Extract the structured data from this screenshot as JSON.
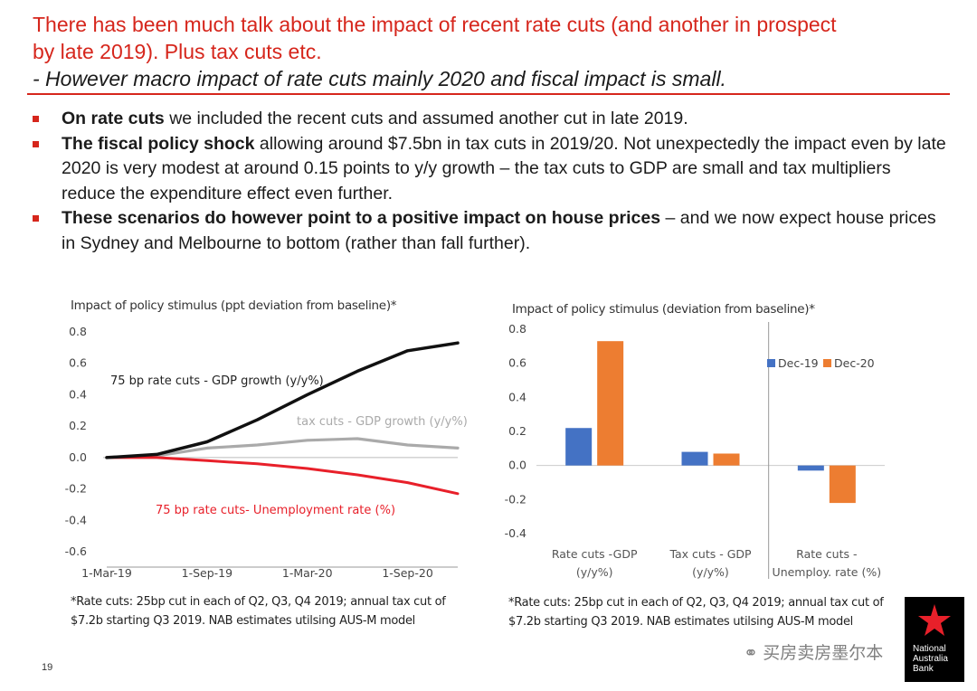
{
  "header": {
    "line1": "There has been much talk about the impact of recent rate cuts (and another in prospect",
    "line2": "by late 2019).  Plus tax cuts etc.",
    "line3": "- However macro impact of rate cuts mainly 2020 and fiscal impact is small."
  },
  "bullets": [
    {
      "bold": "On rate cuts",
      "text": " we included the recent cuts and assumed another cut in late 2019."
    },
    {
      "bold": "The fiscal policy shock",
      "text": " allowing around $7.5bn in tax cuts in 2019/20.  Not unexpectedly the impact even by late 2020 is very modest at around 0.15 points to y/y growth – the tax cuts to GDP are small and tax multipliers reduce the expenditure effect even further."
    },
    {
      "bold": "These scenarios do however point to a positive impact on house prices",
      "text": " – and we now expect house prices in Sydney and Melbourne to bottom (rather than fall further)."
    }
  ],
  "chart_data": [
    {
      "type": "line",
      "title": "Impact of policy stimulus (ppt deviation from baseline)*",
      "x": [
        "1-Mar-19",
        "1-Jun-19",
        "1-Sep-19",
        "1-Dec-19",
        "1-Mar-20",
        "1-Jun-20",
        "1-Sep-20",
        "1-Dec-20"
      ],
      "x_tick_labels": [
        "1-Mar-19",
        "1-Sep-19",
        "1-Mar-20",
        "1-Sep-20"
      ],
      "y_ticks": [
        "0.8",
        "0.6",
        "0.4",
        "0.2",
        "0.0",
        "-0.2",
        "-0.4",
        "-0.6"
      ],
      "ylim": [
        -0.6,
        0.8
      ],
      "grid": false,
      "series": [
        {
          "name": "75 bp rate cuts - GDP growth (y/y%)",
          "color": "#111111",
          "values": [
            0.0,
            0.02,
            0.1,
            0.24,
            0.4,
            0.55,
            0.68,
            0.73
          ]
        },
        {
          "name": "tax cuts - GDP growth (y/y%)",
          "color": "#aaaaaa",
          "values": [
            0.0,
            0.01,
            0.06,
            0.08,
            0.11,
            0.12,
            0.08,
            0.06
          ]
        },
        {
          "name": "75 bp rate cuts- Unemployment rate (%)",
          "color": "#e8202a",
          "values": [
            0.0,
            0.0,
            -0.02,
            -0.04,
            -0.07,
            -0.11,
            -0.16,
            -0.23
          ]
        }
      ],
      "note": [
        "*Rate cuts: 25bp cut in each of Q2, Q3, Q4 2019; annual tax cut of",
        "$7.2b starting Q3 2019.  NAB estimates utilsing AUS-M model"
      ]
    },
    {
      "type": "bar",
      "title": "Impact of policy stimulus (deviation from baseline)*",
      "categories": [
        [
          "Rate cuts -GDP",
          "(y/y%)"
        ],
        [
          "Tax cuts - GDP",
          "(y/y%)"
        ],
        [
          "Rate cuts -",
          "Unemploy. rate (%)"
        ]
      ],
      "y_ticks": [
        "0.8",
        "0.6",
        "0.4",
        "0.2",
        "0.0",
        "-0.2",
        "-0.4"
      ],
      "ylim": [
        -0.4,
        0.8
      ],
      "grid": false,
      "legend_position": "top-right",
      "series": [
        {
          "name": "Dec-19",
          "color": "#4472c4",
          "values": [
            0.22,
            0.08,
            -0.03
          ]
        },
        {
          "name": "Dec-20",
          "color": "#ed7d31",
          "values": [
            0.73,
            0.07,
            -0.22
          ]
        }
      ],
      "note": [
        "*Rate cuts: 25bp cut in each of Q2, Q3, Q4 2019; annual tax cut of",
        "$7.2b starting Q3 2019.  NAB estimates utilsing AUS-M model"
      ]
    }
  ],
  "footer": {
    "page_number": "19",
    "wechat_text": "买房卖房墨尔本",
    "logo_lines": [
      "National",
      "Australia",
      "Bank"
    ],
    "logo_star_color": "#e8202a"
  }
}
